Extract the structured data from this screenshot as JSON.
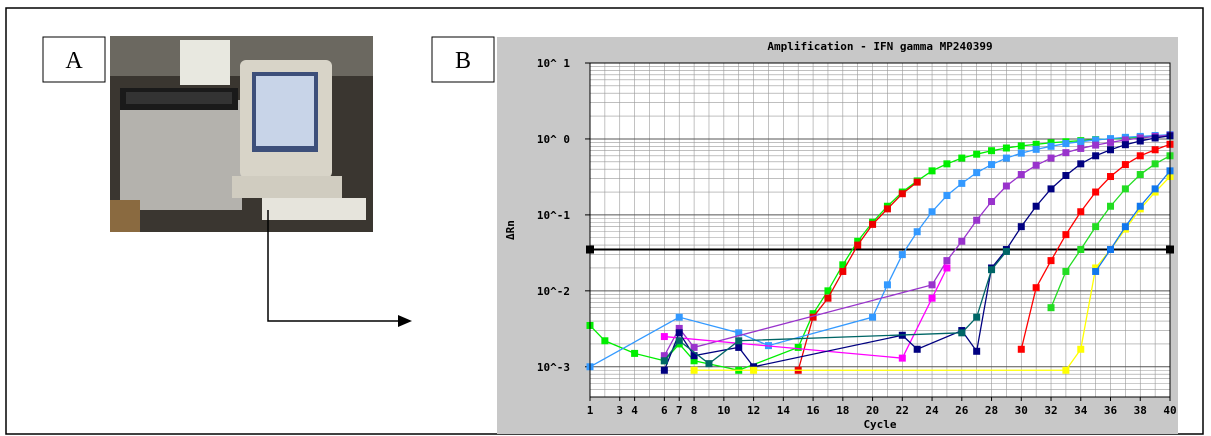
{
  "panels": {
    "a": {
      "label": "A"
    },
    "b": {
      "label": "B"
    }
  },
  "chart_data": {
    "type": "line",
    "title": "Amplification - IFN gamma MP240399",
    "x_label": "Cycle",
    "y_label": "ΔRn",
    "log_y": true,
    "grid": true,
    "xlim": [
      1,
      40
    ],
    "xticks": [
      1,
      3,
      4,
      6,
      7,
      8,
      10,
      12,
      14,
      16,
      18,
      20,
      22,
      24,
      26,
      28,
      30,
      32,
      34,
      36,
      38,
      40
    ],
    "ylim": [
      0.0004,
      10
    ],
    "yticks": [
      {
        "value": 0.001,
        "label": "10^-3"
      },
      {
        "value": 0.01,
        "label": "10^-2"
      },
      {
        "value": 0.1,
        "label": "10^-1"
      },
      {
        "value": 1,
        "label": "10^ 0"
      },
      {
        "value": 10,
        "label": "10^ 1"
      }
    ],
    "threshold": 0.035,
    "series": [
      {
        "color": "#00ee00",
        "x": [
          1,
          2,
          4,
          6,
          7,
          8,
          11,
          15,
          16,
          17,
          18,
          19,
          20,
          21,
          22,
          23,
          24,
          25,
          26,
          27,
          28,
          29,
          30,
          31,
          32,
          33,
          34,
          35,
          36,
          37,
          38,
          39,
          40
        ],
        "values": [
          0.0035,
          0.0022,
          0.0015,
          0.0012,
          0.002,
          0.0012,
          0.0009,
          0.0018,
          0.005,
          0.01,
          0.022,
          0.045,
          0.08,
          0.13,
          0.2,
          0.28,
          0.38,
          0.47,
          0.56,
          0.63,
          0.7,
          0.76,
          0.81,
          0.85,
          0.89,
          0.92,
          0.95,
          0.98,
          1.0,
          1.03,
          1.05,
          1.07,
          1.1
        ]
      },
      {
        "color": "#ee0000",
        "x": [
          15,
          16,
          17,
          18,
          19,
          20,
          21,
          22,
          23
        ],
        "values": [
          0.0009,
          0.0045,
          0.008,
          0.018,
          0.04,
          0.075,
          0.12,
          0.19,
          0.27
        ]
      },
      {
        "color": "#3399ff",
        "x": [
          1,
          7,
          11,
          13,
          20,
          21,
          22,
          23,
          24,
          25,
          26,
          27,
          28,
          29,
          30,
          31,
          32,
          33,
          34,
          35,
          36,
          37,
          38,
          39,
          40
        ],
        "values": [
          0.001,
          0.0045,
          0.0028,
          0.0019,
          0.0045,
          0.012,
          0.03,
          0.06,
          0.11,
          0.18,
          0.26,
          0.36,
          0.46,
          0.56,
          0.65,
          0.73,
          0.8,
          0.87,
          0.92,
          0.97,
          1.01,
          1.05,
          1.08,
          1.11,
          1.14
        ]
      },
      {
        "color": "#9933cc",
        "x": [
          6,
          7,
          8,
          24,
          25,
          26,
          27,
          28,
          29,
          30,
          31,
          32,
          33,
          34,
          35,
          36,
          37,
          38,
          39,
          40
        ],
        "values": [
          0.0014,
          0.0032,
          0.0018,
          0.012,
          0.025,
          0.045,
          0.085,
          0.15,
          0.24,
          0.34,
          0.45,
          0.56,
          0.66,
          0.75,
          0.83,
          0.9,
          0.97,
          1.03,
          1.08,
          1.12
        ]
      },
      {
        "color": "#ff00ff",
        "x": [
          6,
          22,
          24,
          25
        ],
        "values": [
          0.0025,
          0.0013,
          0.008,
          0.02
        ]
      },
      {
        "color": "#000080",
        "x": [
          6,
          7,
          8,
          11,
          12,
          22,
          23,
          26,
          27,
          28,
          29,
          30,
          31,
          32,
          33,
          34,
          35,
          36,
          37,
          38,
          39,
          40
        ],
        "values": [
          0.0009,
          0.0028,
          0.0014,
          0.0018,
          0.001,
          0.0026,
          0.0017,
          0.003,
          0.0016,
          0.02,
          0.035,
          0.07,
          0.13,
          0.22,
          0.33,
          0.47,
          0.6,
          0.72,
          0.84,
          0.94,
          1.03,
          1.1
        ]
      },
      {
        "color": "#006666",
        "x": [
          6,
          7,
          9,
          11,
          26,
          27,
          28,
          29
        ],
        "values": [
          0.0012,
          0.0022,
          0.0011,
          0.0022,
          0.0028,
          0.0045,
          0.019,
          0.033
        ]
      },
      {
        "color": "#ff0000",
        "x": [
          30,
          31,
          32,
          33,
          34,
          35,
          36,
          37,
          38,
          39,
          40
        ],
        "values": [
          0.0017,
          0.011,
          0.025,
          0.055,
          0.11,
          0.2,
          0.32,
          0.46,
          0.6,
          0.72,
          0.85
        ]
      },
      {
        "color": "#22dd22",
        "x": [
          32,
          33,
          34,
          35,
          36,
          37,
          38,
          39,
          40
        ],
        "values": [
          0.006,
          0.018,
          0.035,
          0.07,
          0.13,
          0.22,
          0.34,
          0.47,
          0.6
        ]
      },
      {
        "color": "#ffff00",
        "x": [
          8,
          12,
          33,
          34,
          35,
          36,
          37,
          38,
          39,
          40
        ],
        "values": [
          0.0009,
          0.0009,
          0.0009,
          0.0017,
          0.02,
          0.035,
          0.065,
          0.12,
          0.2,
          0.32
        ]
      },
      {
        "color": "#1177ee",
        "x": [
          35,
          36,
          37,
          38,
          39,
          40
        ],
        "values": [
          0.018,
          0.035,
          0.07,
          0.13,
          0.22,
          0.38
        ]
      }
    ]
  }
}
